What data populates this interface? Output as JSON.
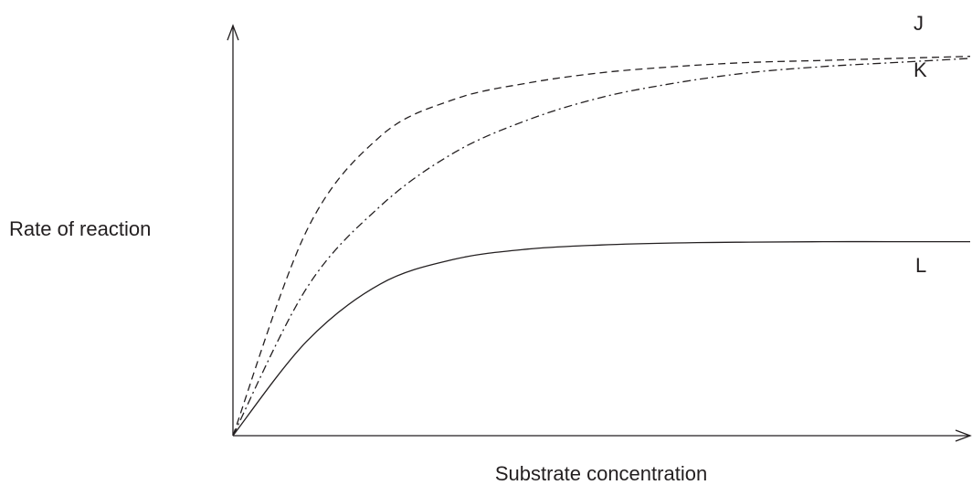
{
  "chart_data": {
    "type": "line",
    "title": "",
    "xlabel": "Substrate concentration",
    "ylabel": "Rate of reaction",
    "xlim": [
      0,
      1
    ],
    "ylim": [
      0,
      1
    ],
    "grid": false,
    "legend": "none",
    "x": [
      0,
      0.1,
      0.2,
      0.3,
      0.4,
      0.5,
      0.6,
      0.7,
      0.8,
      0.9,
      1.0
    ],
    "series": [
      {
        "name": "J",
        "style": "dashed",
        "values": [
          0,
          0.5,
          0.73,
          0.82,
          0.86,
          0.885,
          0.9,
          0.91,
          0.915,
          0.92,
          0.925
        ]
      },
      {
        "name": "K",
        "style": "dash-dot",
        "values": [
          0,
          0.36,
          0.56,
          0.69,
          0.77,
          0.825,
          0.86,
          0.885,
          0.9,
          0.91,
          0.92
        ]
      },
      {
        "name": "L",
        "style": "solid",
        "values": [
          0,
          0.23,
          0.37,
          0.43,
          0.455,
          0.465,
          0.47,
          0.472,
          0.473,
          0.473,
          0.473
        ]
      }
    ]
  },
  "colors": {
    "ink": "#231f20",
    "background": "#ffffff"
  }
}
